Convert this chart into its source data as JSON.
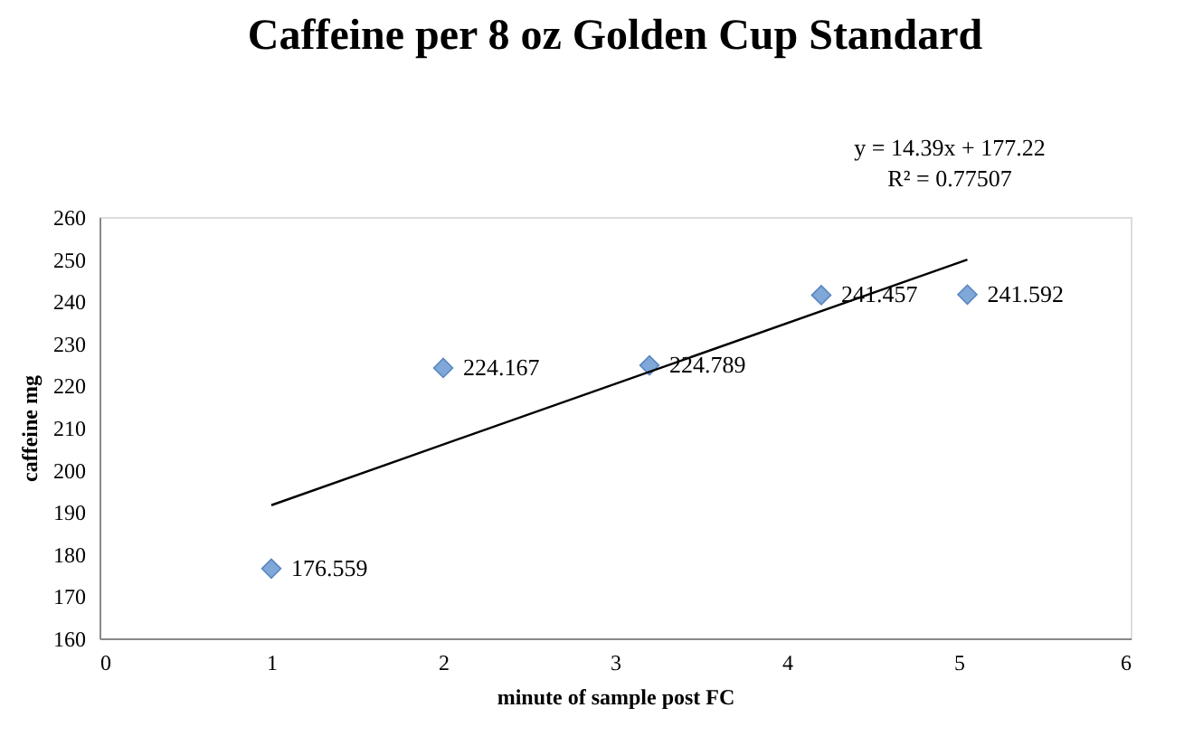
{
  "chart_data": {
    "type": "scatter",
    "title": "Caffeine per 8 oz Golden Cup Standard",
    "xlabel": "minute of sample post FC",
    "ylabel": "caffeine mg",
    "x": [
      1,
      2,
      3.2,
      4.2,
      5.05
    ],
    "series": [
      {
        "color": "#7fa8d8",
        "marker": "diamond",
        "values": [
          176.559,
          224.167,
          224.789,
          241.457,
          241.592
        ],
        "value_labels": [
          "176.559",
          "224.167",
          "224.789",
          "241.457",
          "241.592"
        ]
      },
      {
        "type": "line",
        "color": "#000000",
        "marker": "none",
        "x": [
          1,
          5.05
        ],
        "values": [
          191.6,
          249.9
        ]
      }
    ],
    "annotations": [
      "y = 14.39x + 177.22",
      "R² = 0.77507"
    ],
    "xlim": [
      0,
      6
    ],
    "xticks": [
      0,
      1,
      2,
      3,
      4,
      5,
      6
    ],
    "ylim": [
      160,
      260
    ],
    "yticks": [
      160,
      170,
      180,
      190,
      200,
      210,
      220,
      230,
      240,
      250,
      260
    ],
    "grid": false
  }
}
